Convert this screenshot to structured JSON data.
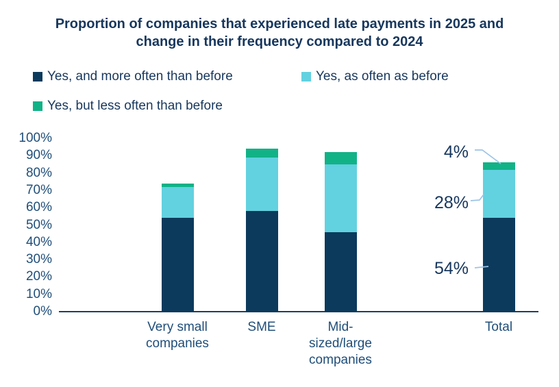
{
  "title": "Proportion of companies that experienced late payments in 2025 and change in their frequency compared to 2024",
  "legend": {
    "items": [
      {
        "label": "Yes, and more often than before",
        "color": "#0b3a5d"
      },
      {
        "label": "Yes, as often as before",
        "color": "#62d1e0"
      },
      {
        "label": "Yes, but less often than before",
        "color": "#12b287"
      }
    ]
  },
  "chart_data": {
    "type": "bar",
    "stacked": true,
    "title": "Proportion of companies that experienced late payments in 2025 and change in their frequency compared to 2024",
    "categories": [
      "Very small companies",
      "SME",
      "Mid-sized/large companies",
      "Total"
    ],
    "series": [
      {
        "name": "Yes, and more often than before",
        "color": "#0b3a5d",
        "values": [
          54,
          58,
          46,
          54
        ]
      },
      {
        "name": "Yes, as often as before",
        "color": "#62d1e0",
        "values": [
          18,
          31,
          39,
          28
        ]
      },
      {
        "name": "Yes, but less often than before",
        "color": "#12b287",
        "values": [
          2,
          5,
          7,
          4
        ]
      }
    ],
    "xlabel": "",
    "ylabel": "",
    "ylim": [
      0,
      100
    ],
    "y_tick_step": 10,
    "y_tick_labels": [
      "0%",
      "10%",
      "20%",
      "30%",
      "40%",
      "50%",
      "60%",
      "70%",
      "80%",
      "90%",
      "100%"
    ],
    "grid": false,
    "legend_position": "top-left",
    "annotations": [
      {
        "text": "4%",
        "category": "Total",
        "series": "Yes, but less often than before"
      },
      {
        "text": "28%",
        "category": "Total",
        "series": "Yes, as often as before"
      },
      {
        "text": "54%",
        "category": "Total",
        "series": "Yes, and more often than before"
      }
    ],
    "leader_line_color": "#9cc3e8"
  }
}
